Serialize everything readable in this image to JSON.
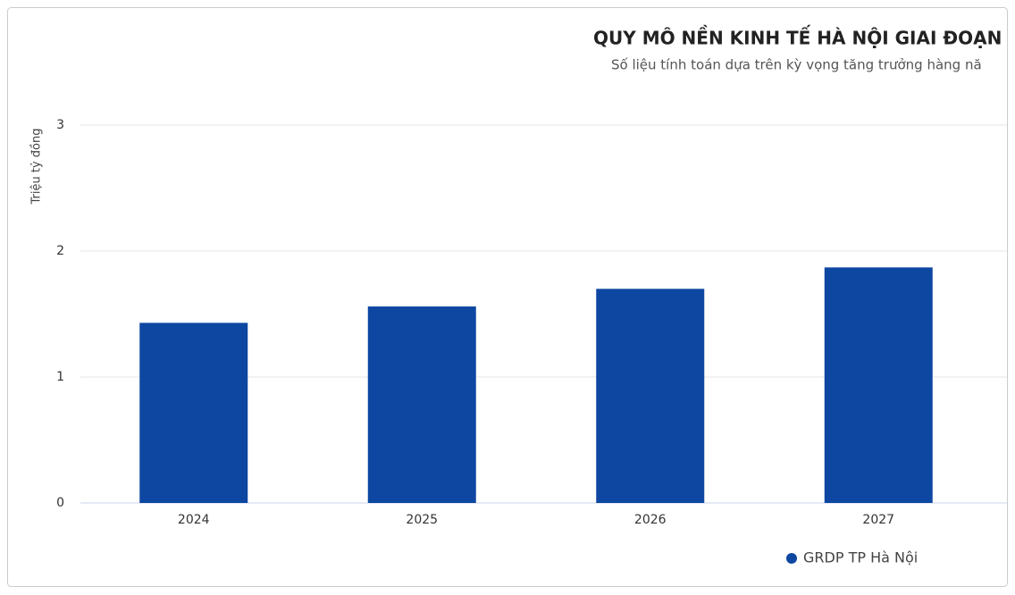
{
  "chart_data": {
    "type": "bar",
    "title": "QUY MÔ NỀN KINH TẾ HÀ NỘI GIAI ĐOẠN",
    "subtitle": "Số liệu tính toán dựa trên kỳ vọng tăng trưởng hàng nă",
    "y_label": "Triệu tỷ đồng",
    "categories": [
      "2024",
      "2025",
      "2026",
      "2027"
    ],
    "series": [
      {
        "name": "GRDP TP Hà Nội",
        "color": "#0d47a1",
        "values": [
          1.43,
          1.56,
          1.7,
          1.87
        ]
      }
    ],
    "ylim": [
      0,
      3
    ],
    "yticks": [
      0,
      1,
      2,
      3
    ],
    "grid": true
  }
}
